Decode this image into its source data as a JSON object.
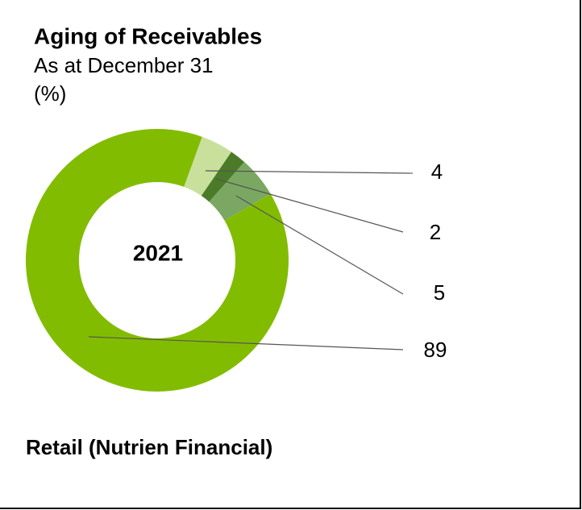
{
  "chart_data": {
    "type": "donut",
    "title": "Aging of Receivables",
    "subtitle": "As at December 31",
    "unit_label": "(%)",
    "center_label": "2021",
    "footnote": "Retail (Nutrien Financial)",
    "values": [
      4,
      2,
      5,
      89
    ],
    "colors": [
      "#c8e09c",
      "#4b7b29",
      "#7aa862",
      "#82bc00"
    ]
  }
}
